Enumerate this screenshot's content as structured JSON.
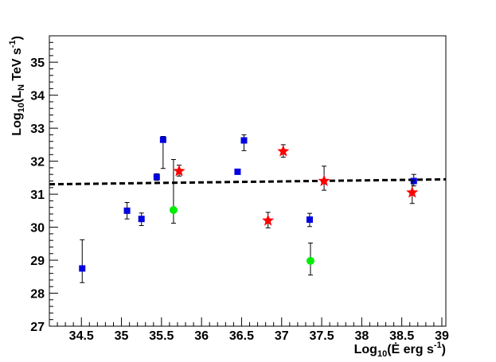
{
  "chart_data": {
    "type": "scatter",
    "title": "",
    "xlabel": "Log10(Ė erg s^-1)",
    "ylabel": "Log10(LN TeV s^-1)",
    "xlim": [
      34.1,
      39.05
    ],
    "ylim": [
      27,
      35.8
    ],
    "xticks": [
      "34.5",
      "35",
      "35.5",
      "36",
      "36.5",
      "37",
      "37.5",
      "38",
      "38.5",
      "39"
    ],
    "yticks": [
      "27",
      "28",
      "29",
      "30",
      "31",
      "32",
      "33",
      "34",
      "35"
    ],
    "grid": false,
    "legend": "none",
    "series": [
      {
        "marker": "square",
        "color": "#0000e0",
        "points": [
          {
            "x": 34.51,
            "y": 28.75,
            "ylo": 28.32,
            "yhi": 29.62
          },
          {
            "x": 35.07,
            "y": 30.5,
            "ylo": 30.25,
            "yhi": 30.75
          },
          {
            "x": 35.25,
            "y": 30.25,
            "ylo": 30.05,
            "yhi": 30.43
          },
          {
            "x": 35.44,
            "y": 31.52,
            "ylo": 31.42,
            "yhi": 31.62
          },
          {
            "x": 35.52,
            "y": 32.65,
            "ylo": 31.78,
            "yhi": 32.75
          },
          {
            "x": 36.45,
            "y": 31.68,
            "ylo": 31.62,
            "yhi": 31.74
          },
          {
            "x": 36.53,
            "y": 32.63,
            "ylo": 32.32,
            "yhi": 32.8
          },
          {
            "x": 37.35,
            "y": 30.23,
            "ylo": 30.02,
            "yhi": 30.42
          },
          {
            "x": 38.65,
            "y": 31.4,
            "ylo": 31.25,
            "yhi": 31.6
          }
        ]
      },
      {
        "marker": "circle",
        "color": "#00ee00",
        "points": [
          {
            "x": 35.65,
            "y": 30.52,
            "ylo": 30.12,
            "yhi": 32.05
          },
          {
            "x": 37.36,
            "y": 28.98,
            "ylo": 28.55,
            "yhi": 29.52
          }
        ]
      },
      {
        "marker": "star",
        "color": "#ff0000",
        "points": [
          {
            "x": 35.72,
            "y": 31.7,
            "ylo": 31.55,
            "yhi": 31.88
          },
          {
            "x": 36.83,
            "y": 30.2,
            "ylo": 29.98,
            "yhi": 30.45
          },
          {
            "x": 37.02,
            "y": 32.3,
            "ylo": 32.12,
            "yhi": 32.5
          },
          {
            "x": 37.53,
            "y": 31.4,
            "ylo": 31.12,
            "yhi": 31.85
          },
          {
            "x": 38.63,
            "y": 31.05,
            "ylo": 30.72,
            "yhi": 31.42
          }
        ]
      }
    ],
    "fit_line": {
      "style": "dashed",
      "color": "#000000",
      "points": [
        [
          34.1,
          31.3
        ],
        [
          39.05,
          31.45
        ]
      ]
    }
  }
}
